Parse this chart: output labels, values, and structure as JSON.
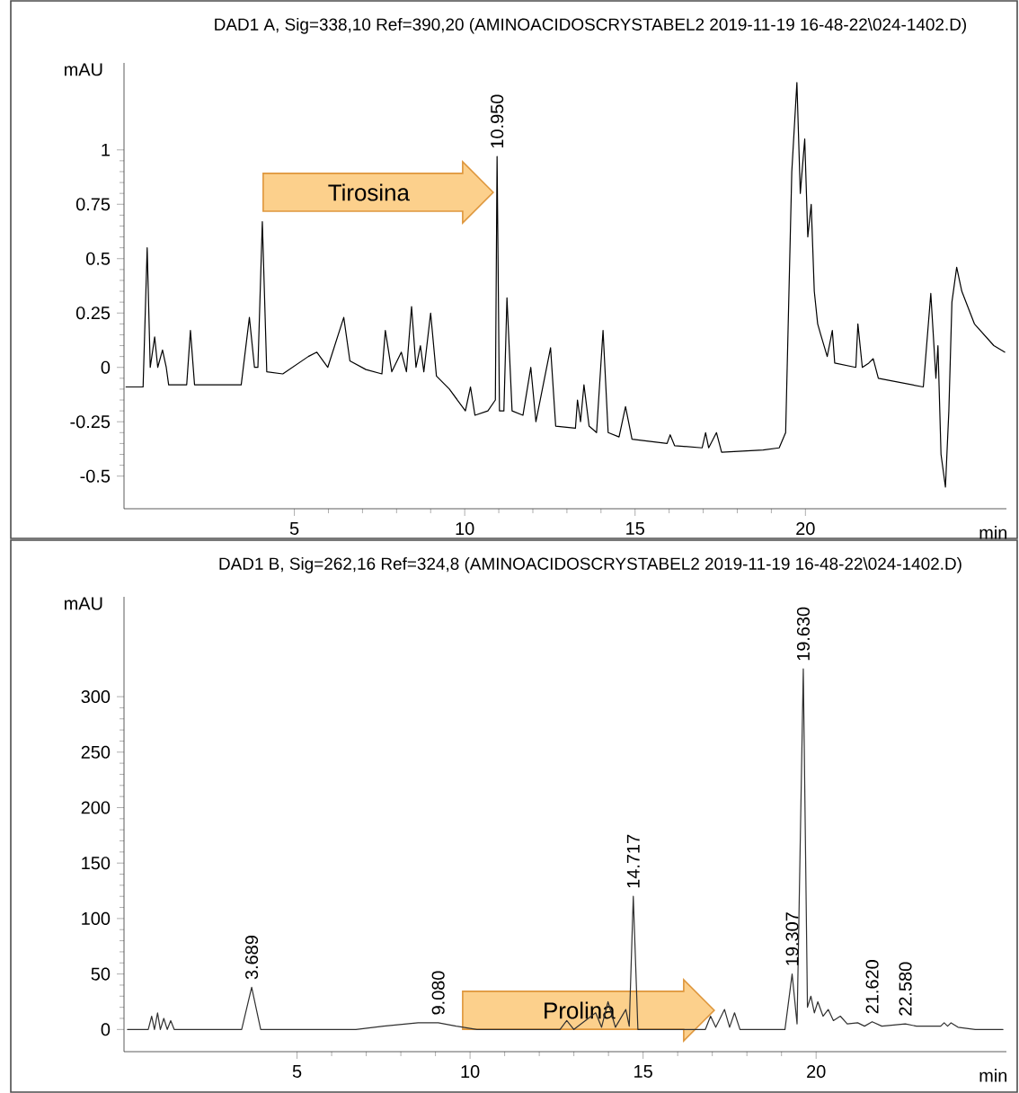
{
  "chart_data": [
    {
      "type": "line",
      "title": "DAD1 A, Sig=338,10 Ref=390,20 (AMINOACIDOSCRYSTABEL2 2019-11-19 16-48-22\\024-1402.D)",
      "xlabel": "min",
      "ylabel": "mAU",
      "xlim": [
        0,
        25.9
      ],
      "ylim": [
        -0.65,
        1.4
      ],
      "xticks": [
        5,
        10,
        15,
        20
      ],
      "yticks": [
        -0.5,
        -0.25,
        0,
        0.25,
        0.5,
        0.75,
        1
      ],
      "annotations": [
        "Tirosina",
        {
          "text": "10.950",
          "x": 10.95,
          "y": 0.97
        }
      ],
      "series": [
        {
          "color": "#000000",
          "x": [
            0.06,
            0.56,
            0.68,
            0.77,
            0.9,
            0.99,
            1.13,
            1.24,
            1.31,
            1.84,
            1.95,
            2.07,
            3.44,
            3.68,
            3.83,
            3.93,
            4.06,
            4.19,
            4.66,
            5.41,
            5.66,
            5.98,
            6.45,
            6.63,
            7.1,
            7.57,
            7.67,
            7.86,
            8.14,
            8.29,
            8.44,
            8.57,
            8.7,
            8.8,
            9.0,
            9.17,
            9.55,
            10.02,
            10.17,
            10.3,
            10.68,
            10.9,
            10.95,
            11.02,
            11.15,
            11.24,
            11.39,
            11.71,
            11.94,
            12.09,
            12.52,
            12.67,
            13.25,
            13.31,
            13.4,
            13.5,
            13.65,
            13.87,
            14.06,
            14.21,
            14.53,
            14.72,
            14.91,
            15.94,
            16.03,
            16.16,
            16.97,
            17.07,
            17.16,
            17.39,
            17.54,
            18.76,
            19.23,
            19.42,
            19.6,
            19.75,
            19.85,
            19.98,
            20.07,
            20.17,
            20.26,
            20.36,
            20.45,
            20.64,
            20.79,
            20.86,
            21.48,
            21.54,
            21.67,
            21.86,
            21.99,
            22.14,
            23.46,
            23.68,
            23.83,
            23.89,
            23.98,
            24.11,
            24.21,
            24.3,
            24.44,
            24.59,
            24.96,
            25.53,
            25.85
          ],
          "values": [
            -0.09,
            -0.09,
            0.55,
            0.0,
            0.14,
            0.0,
            0.08,
            0.0,
            -0.08,
            -0.08,
            0.17,
            -0.08,
            -0.08,
            0.23,
            0.0,
            0.0,
            0.67,
            -0.02,
            -0.03,
            0.05,
            0.07,
            0.0,
            0.23,
            0.03,
            -0.01,
            -0.03,
            0.17,
            -0.02,
            0.07,
            -0.02,
            0.28,
            0.0,
            0.1,
            -0.02,
            0.25,
            -0.04,
            -0.1,
            -0.2,
            -0.09,
            -0.22,
            -0.2,
            -0.15,
            0.97,
            -0.2,
            -0.2,
            0.32,
            -0.2,
            -0.22,
            0.0,
            -0.25,
            0.09,
            -0.27,
            -0.28,
            -0.15,
            -0.25,
            -0.08,
            -0.27,
            -0.3,
            0.17,
            -0.3,
            -0.32,
            -0.18,
            -0.33,
            -0.35,
            -0.31,
            -0.36,
            -0.37,
            -0.3,
            -0.37,
            -0.3,
            -0.39,
            -0.38,
            -0.37,
            -0.3,
            0.9,
            1.31,
            0.8,
            1.05,
            0.6,
            0.75,
            0.35,
            0.2,
            0.15,
            0.05,
            0.17,
            0.02,
            0.0,
            0.2,
            0.0,
            0.02,
            0.04,
            -0.05,
            -0.09,
            0.34,
            -0.05,
            0.1,
            -0.4,
            -0.55,
            -0.2,
            0.3,
            0.46,
            0.35,
            0.2,
            0.1,
            0.07
          ]
        }
      ]
    },
    {
      "type": "line",
      "title": "DAD1 B, Sig=262,16 Ref=324,8 (AMINOACIDOSCRYSTABEL2 2019-11-19 16-48-22\\024-1402.D)",
      "xlabel": "min",
      "ylabel": "mAU",
      "xlim": [
        0,
        25.5
      ],
      "ylim": [
        -20,
        390
      ],
      "xticks": [
        5,
        10,
        15,
        20
      ],
      "yticks": [
        0,
        50,
        100,
        150,
        200,
        250,
        300
      ],
      "annotations": [
        "Prolina",
        {
          "text": "3.689",
          "x": 3.689,
          "y": 38
        },
        {
          "text": "9.080",
          "x": 9.08,
          "y": 6
        },
        {
          "text": "14.717",
          "x": 14.717,
          "y": 120
        },
        {
          "text": "19.307",
          "x": 19.307,
          "y": 50
        },
        {
          "text": "19.630",
          "x": 19.63,
          "y": 325
        },
        {
          "text": "21.620",
          "x": 21.62,
          "y": 7
        },
        {
          "text": "22.580",
          "x": 22.58,
          "y": 5
        }
      ],
      "series": [
        {
          "color": "#303030",
          "x": [
            0.1,
            0.7,
            0.8,
            0.88,
            0.97,
            1.05,
            1.15,
            1.25,
            1.35,
            1.45,
            3.4,
            3.689,
            3.95,
            6.7,
            7.5,
            8.5,
            9.08,
            9.6,
            10.2,
            12.6,
            12.794,
            13.0,
            13.629,
            13.8,
            13.987,
            14.2,
            14.501,
            14.6,
            14.717,
            14.85,
            16.8,
            16.95,
            17.1,
            17.354,
            17.5,
            17.643,
            17.8,
            19.1,
            19.307,
            19.45,
            19.63,
            19.75,
            19.85,
            19.95,
            20.05,
            20.2,
            20.35,
            20.5,
            20.7,
            20.9,
            21.2,
            21.4,
            21.62,
            21.9,
            22.58,
            22.9,
            23.6,
            23.7,
            23.8,
            23.9,
            24.1,
            24.6,
            25.4
          ],
          "values": [
            0,
            0,
            12,
            0,
            15,
            0,
            10,
            0,
            8,
            0,
            0,
            38,
            0,
            0,
            3,
            6,
            6,
            3,
            0,
            0,
            8,
            0,
            15,
            2,
            25,
            2,
            18,
            3,
            120,
            0,
            0,
            12,
            2,
            18,
            2,
            15,
            0,
            0,
            50,
            5,
            325,
            20,
            30,
            15,
            25,
            12,
            18,
            8,
            12,
            5,
            6,
            3,
            7,
            3,
            5,
            3,
            3,
            6,
            3,
            6,
            2,
            0,
            0
          ]
        }
      ]
    }
  ]
}
